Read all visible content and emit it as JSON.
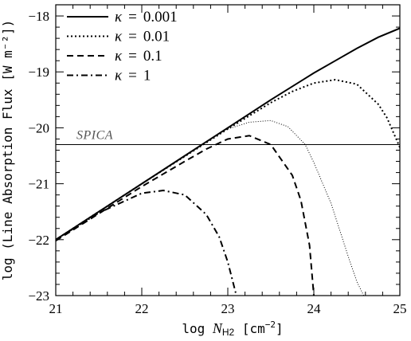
{
  "chart_data": {
    "type": "line",
    "xlabel": {
      "prefix": "log ",
      "var": "N",
      "sub": "H2",
      "suffix": " [cm",
      "sup": "−2",
      "end": "]"
    },
    "ylabel": "log (Line Absorption Flux [W m⁻²])",
    "xlim": [
      21,
      25
    ],
    "ylim": [
      -23,
      -17.8
    ],
    "xticks": [
      21,
      22,
      23,
      24,
      25
    ],
    "xtick_labels": [
      "21",
      "22",
      "23",
      "24",
      "25"
    ],
    "yticks": [
      -23,
      -22,
      -21,
      -20,
      -19,
      -18
    ],
    "ytick_labels": [
      "−23",
      "−22",
      "−21",
      "−20",
      "−19",
      "−18"
    ],
    "legend_position": "top-left",
    "grid": false,
    "series": [
      {
        "name": "κ = 0.001",
        "legend_symbol": "κ",
        "legend_value": "0.001",
        "style": "solid",
        "width": 2,
        "x": [
          21.0,
          21.5,
          22.0,
          22.5,
          23.0,
          23.5,
          24.0,
          24.25,
          24.5,
          24.75,
          25.0
        ],
        "y": [
          -22.0,
          -21.5,
          -21.0,
          -20.5,
          -20.0,
          -19.5,
          -19.02,
          -18.8,
          -18.58,
          -18.38,
          -18.22
        ]
      },
      {
        "name": "κ = 0.01",
        "legend_symbol": "κ",
        "legend_value": "0.01",
        "style": "dotted",
        "width": 2,
        "x": [
          21.0,
          22.0,
          23.0,
          23.5,
          23.75,
          24.0,
          24.25,
          24.5,
          24.75,
          24.85,
          25.0
        ],
        "y": [
          -22.0,
          -21.0,
          -20.02,
          -19.55,
          -19.35,
          -19.2,
          -19.14,
          -19.22,
          -19.58,
          -19.82,
          -20.35
        ]
      },
      {
        "name": "κ = 0.1",
        "legend_symbol": "κ",
        "legend_value": "0.1",
        "style": "dashed",
        "width": 2,
        "x": [
          21.0,
          22.0,
          22.5,
          22.75,
          23.0,
          23.25,
          23.5,
          23.75,
          23.85,
          23.95,
          24.0
        ],
        "y": [
          -22.02,
          -21.05,
          -20.6,
          -20.38,
          -20.2,
          -20.14,
          -20.3,
          -20.85,
          -21.3,
          -22.1,
          -23.0
        ]
      },
      {
        "name": "κ = 1",
        "legend_symbol": "κ",
        "legend_value": "1",
        "style": "dashdot",
        "width": 2,
        "x": [
          21.0,
          21.5,
          22.0,
          22.25,
          22.5,
          22.75,
          22.9,
          23.0,
          23.1
        ],
        "y": [
          -22.0,
          -21.52,
          -21.17,
          -21.12,
          -21.2,
          -21.55,
          -21.95,
          -22.4,
          -23.0
        ]
      },
      {
        "name": "",
        "style": "thin-dotted",
        "width": 1,
        "x": [
          23.0,
          23.25,
          23.5,
          23.7,
          23.9,
          24.0,
          24.2,
          24.4,
          24.5,
          24.58
        ],
        "y": [
          -20.02,
          -19.9,
          -19.87,
          -19.98,
          -20.3,
          -20.62,
          -21.35,
          -22.3,
          -22.75,
          -23.0
        ]
      }
    ],
    "reference_lines": [
      {
        "label": "SPICA",
        "y": -20.3
      }
    ]
  }
}
